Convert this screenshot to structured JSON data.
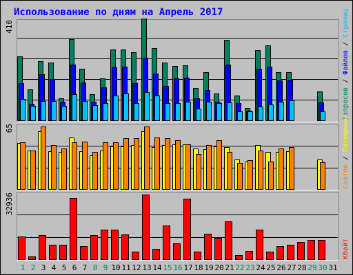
{
  "title": "Использование по дням на Апрель 2017",
  "colors": {
    "background": "#C0C0C0",
    "title": "#0000FF",
    "hits": "#00805C",
    "files": "#0000FF",
    "pages": "#00C0FF",
    "visits": "#FFFF00",
    "sites": "#FF8000",
    "kbytes": "#FF0000",
    "weekday_label": "#000000",
    "weekend_label": "#00805C"
  },
  "chart_data": [
    {
      "type": "bar",
      "panel": "top",
      "ymax_label": "410",
      "ylim": [
        0,
        410
      ],
      "legend": [
        {
          "label": "Запросов",
          "color": "#00805C"
        },
        {
          "label": "Файлов",
          "color": "#0000FF"
        },
        {
          "label": "Страниц",
          "color": "#00C0FF"
        }
      ],
      "categories": [
        "1",
        "2",
        "3",
        "4",
        "5",
        "6",
        "7",
        "8",
        "9",
        "10",
        "11",
        "12",
        "13",
        "14",
        "15",
        "16",
        "17",
        "18",
        "19",
        "20",
        "21",
        "22",
        "23",
        "24",
        "25",
        "26",
        "27",
        "28",
        "29",
        "30",
        "31"
      ],
      "series": [
        {
          "name": "Запросов",
          "values": [
            257,
            125,
            237,
            233,
            90,
            327,
            207,
            106,
            168,
            284,
            284,
            275,
            410,
            292,
            233,
            218,
            223,
            130,
            193,
            109,
            323,
            101,
            50,
            282,
            302,
            195,
            193,
            0,
            0,
            115,
            0
          ]
        },
        {
          "name": "Файлов",
          "values": [
            150,
            67,
            185,
            165,
            74,
            225,
            153,
            74,
            133,
            213,
            215,
            149,
            251,
            188,
            138,
            169,
            171,
            88,
            121,
            74,
            225,
            68,
            38,
            207,
            215,
            160,
            163,
            0,
            0,
            72,
            0
          ]
        },
        {
          "name": "Страниц",
          "values": [
            87,
            58,
            78,
            78,
            57,
            106,
            78,
            60,
            69,
            101,
            109,
            69,
            114,
            99,
            70,
            68,
            74,
            47,
            74,
            70,
            73,
            35,
            36,
            56,
            64,
            75,
            79,
            0,
            0,
            37,
            0
          ]
        }
      ]
    },
    {
      "type": "bar",
      "panel": "middle",
      "ymax_label": "65",
      "ylim": [
        0,
        65
      ],
      "legend": [
        {
          "label": "Сайтов",
          "color": "#FF8000"
        },
        {
          "label": "Посещений",
          "color": "#FFFF00"
        }
      ],
      "categories": [
        "1",
        "2",
        "3",
        "4",
        "5",
        "6",
        "7",
        "8",
        "9",
        "10",
        "11",
        "12",
        "13",
        "14",
        "15",
        "16",
        "17",
        "18",
        "19",
        "20",
        "21",
        "22",
        "23",
        "24",
        "25",
        "26",
        "27",
        "28",
        "29",
        "30",
        "31"
      ],
      "series": [
        {
          "name": "Сайтов",
          "values": [
            46,
            39,
            58,
            38,
            37,
            52,
            38,
            34,
            39,
            43,
            43,
            44,
            58,
            42,
            44,
            45,
            45,
            41,
            40,
            43,
            42,
            30,
            28,
            44,
            37,
            37,
            38,
            0,
            0,
            30,
            0
          ]
        },
        {
          "name": "Посещений",
          "values": [
            47,
            39,
            63,
            44,
            41,
            47,
            48,
            37,
            47,
            47,
            51,
            51,
            63,
            52,
            51,
            49,
            45,
            35,
            44,
            49,
            37,
            26,
            29,
            39,
            28,
            41,
            42,
            0,
            0,
            27,
            0
          ]
        }
      ]
    },
    {
      "type": "bar",
      "panel": "bottom",
      "ymax_label": "32936",
      "ylim": [
        0,
        32936
      ],
      "legend": [
        {
          "label": "Кбайт",
          "color": "#FF0000"
        }
      ],
      "categories": [
        "1",
        "2",
        "3",
        "4",
        "5",
        "6",
        "7",
        "8",
        "9",
        "10",
        "11",
        "12",
        "13",
        "14",
        "15",
        "16",
        "17",
        "18",
        "19",
        "20",
        "21",
        "22",
        "23",
        "24",
        "25",
        "26",
        "27",
        "28",
        "29",
        "30",
        "31"
      ],
      "series": [
        {
          "name": "Кбайт",
          "values": [
            11500,
            1300,
            12200,
            7400,
            7200,
            31300,
            6500,
            12200,
            15200,
            15200,
            12600,
            4000,
            32900,
            5300,
            17200,
            7900,
            30800,
            4000,
            12800,
            10900,
            19400,
            2200,
            4300,
            15200,
            4000,
            6800,
            7200,
            8600,
            9700,
            9900,
            0
          ]
        }
      ]
    }
  ]
}
